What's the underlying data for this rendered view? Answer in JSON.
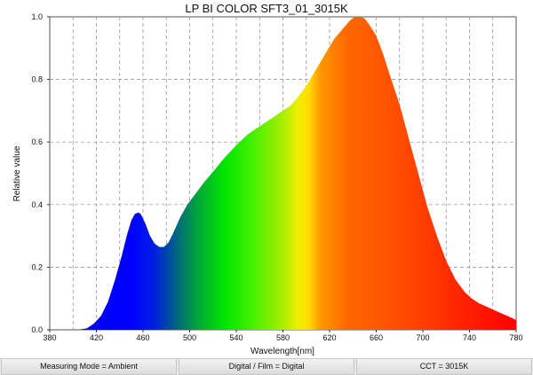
{
  "chart_data": {
    "type": "area",
    "title": "LP BI COLOR SFT3_01_3015K",
    "xlabel": "Wavelength[nm]",
    "ylabel": "Relative value",
    "xlim": [
      380,
      780
    ],
    "ylim": [
      0,
      1.0
    ],
    "x_ticks": [
      380,
      420,
      460,
      500,
      540,
      580,
      620,
      660,
      700,
      740,
      780
    ],
    "x_ticks_labels": [
      "380",
      "420",
      "460",
      "500",
      "540",
      "580",
      "620",
      "660",
      "700",
      "740",
      "780"
    ],
    "y_ticks": [
      0,
      0.2,
      0.4,
      0.6,
      0.8,
      1.0
    ],
    "y_ticks_labels": [
      "0.0",
      "0.2",
      "0.4",
      "0.6",
      "0.8",
      "1.0"
    ],
    "grid": true,
    "grid_x_step": 20,
    "series": [
      {
        "x": [
          380,
          405,
          412,
          418,
          424,
          430,
          436,
          442,
          446,
          450,
          453,
          456,
          458,
          462,
          466,
          470,
          474,
          478,
          482,
          486,
          492,
          498,
          504,
          512,
          520,
          530,
          540,
          550,
          560,
          570,
          576,
          580,
          586,
          592,
          600,
          608,
          616,
          624,
          632,
          638,
          642,
          646,
          650,
          654,
          660,
          666,
          672,
          680,
          688,
          696,
          704,
          712,
          720,
          728,
          736,
          742,
          748,
          754,
          760,
          766,
          772,
          778,
          780
        ],
        "y": [
          0,
          0,
          0.005,
          0.02,
          0.045,
          0.09,
          0.16,
          0.24,
          0.3,
          0.35,
          0.37,
          0.375,
          0.37,
          0.34,
          0.3,
          0.275,
          0.265,
          0.265,
          0.28,
          0.31,
          0.36,
          0.4,
          0.43,
          0.47,
          0.505,
          0.55,
          0.59,
          0.625,
          0.65,
          0.675,
          0.69,
          0.7,
          0.715,
          0.74,
          0.78,
          0.83,
          0.88,
          0.93,
          0.965,
          0.99,
          1.0,
          1.0,
          0.995,
          0.975,
          0.94,
          0.88,
          0.81,
          0.72,
          0.61,
          0.5,
          0.39,
          0.3,
          0.22,
          0.16,
          0.12,
          0.1,
          0.085,
          0.075,
          0.065,
          0.055,
          0.045,
          0.035,
          0.03
        ]
      }
    ]
  },
  "footer": {
    "measuring_mode": "Measuring Mode = Ambient",
    "digital_film": "Digital / Film = Digital",
    "cct": "CCT = 3015K"
  }
}
